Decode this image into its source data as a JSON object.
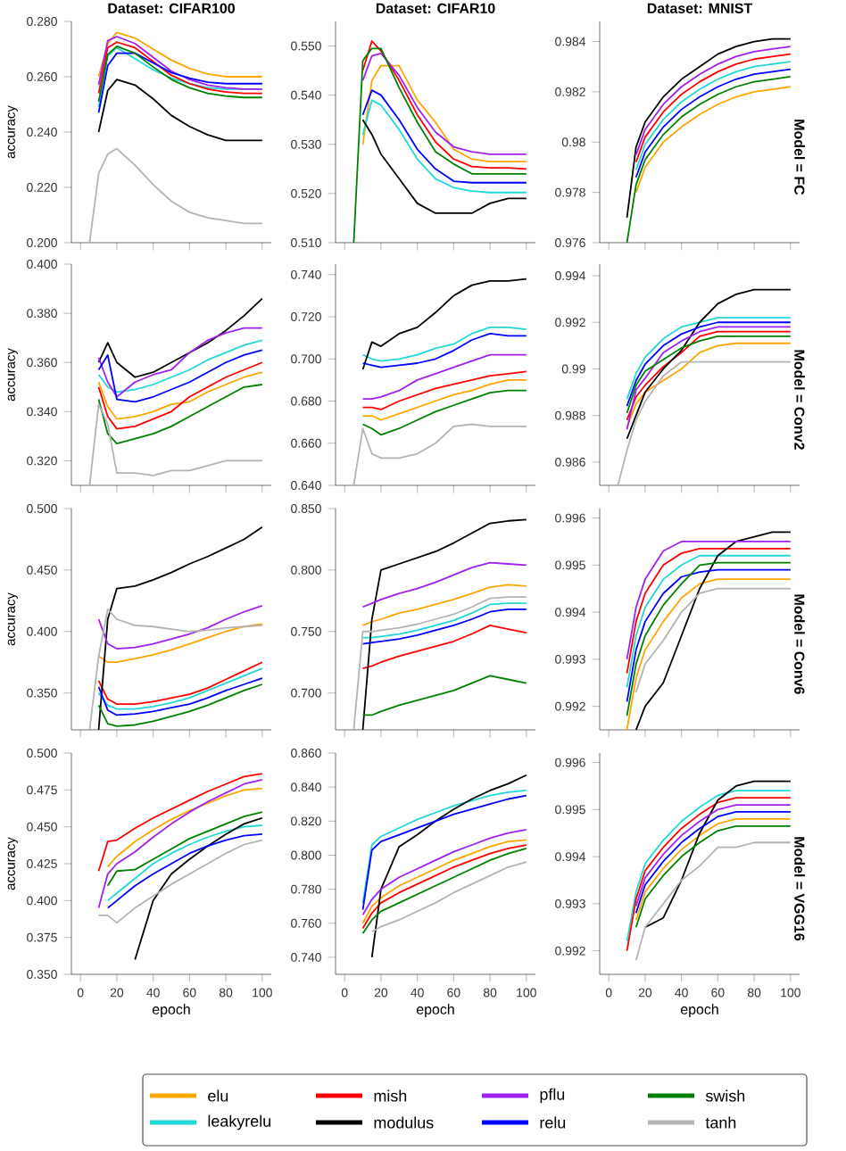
{
  "chart_data": [
    {
      "type": "line",
      "title": "Dataset: CIFAR100",
      "ylabel": "accuracy",
      "legend": "bottom",
      "tick_labels": "y",
      "x": [
        5,
        10,
        15,
        20,
        30,
        40,
        50,
        60,
        70,
        80,
        90,
        100
      ],
      "xlim": [
        -5,
        105
      ],
      "xticks": [
        0,
        20,
        40,
        60,
        80,
        100
      ],
      "ylim": [
        0.2,
        0.28
      ],
      "yticks": [
        {
          "value": 0.2,
          "label": "0.200"
        },
        {
          "value": 0.22,
          "label": "0.220"
        },
        {
          "value": 0.24,
          "label": "0.240"
        },
        {
          "value": 0.26,
          "label": "0.260"
        },
        {
          "value": 0.28,
          "label": "0.280"
        }
      ],
      "series": [
        {
          "name": "elu",
          "color": "#ffa500",
          "values": [
            null,
            0.26,
            0.272,
            0.276,
            0.274,
            0.27,
            0.266,
            0.263,
            0.261,
            0.26,
            0.26,
            0.26
          ]
        },
        {
          "name": "leakyrelu",
          "color": "#20d8d8",
          "values": [
            null,
            0.249,
            0.2675,
            0.2705,
            0.2665,
            0.2625,
            0.2595,
            0.2575,
            0.256,
            0.2555,
            0.2555,
            0.2555
          ]
        },
        {
          "name": "mish",
          "color": "#ff0000",
          "values": [
            null,
            0.254,
            0.2705,
            0.2725,
            0.2705,
            0.2655,
            0.2605,
            0.2575,
            0.2555,
            0.2545,
            0.254,
            0.254
          ]
        },
        {
          "name": "modulus",
          "color": "#000000",
          "values": [
            null,
            0.24,
            0.255,
            0.259,
            0.257,
            0.252,
            0.246,
            0.242,
            0.239,
            0.237,
            0.237,
            0.237
          ]
        },
        {
          "name": "pflu",
          "color": "#a020f0",
          "values": [
            null,
            0.257,
            0.273,
            0.2745,
            0.272,
            0.267,
            0.262,
            0.259,
            0.257,
            0.256,
            0.2555,
            0.2555
          ]
        },
        {
          "name": "relu",
          "color": "#0000ff",
          "values": [
            null,
            0.247,
            0.264,
            0.2685,
            0.2685,
            0.265,
            0.2615,
            0.2595,
            0.258,
            0.2575,
            0.2575,
            0.2575
          ]
        },
        {
          "name": "swish",
          "color": "#008000",
          "values": [
            null,
            0.251,
            0.268,
            0.271,
            0.2685,
            0.2635,
            0.259,
            0.256,
            0.254,
            0.253,
            0.2525,
            0.2525
          ]
        },
        {
          "name": "tanh",
          "color": "#b4b4b4",
          "values": [
            0.2,
            0.225,
            0.232,
            0.234,
            0.228,
            0.221,
            0.215,
            0.211,
            0.209,
            0.208,
            0.207,
            0.207
          ]
        }
      ]
    },
    {
      "type": "line",
      "title": "Dataset: CIFAR10",
      "tick_labels": "y",
      "x": [
        5,
        10,
        15,
        20,
        30,
        40,
        50,
        60,
        70,
        80,
        90,
        100
      ],
      "xlim": [
        -5,
        105
      ],
      "xticks": [
        0,
        20,
        40,
        60,
        80,
        100
      ],
      "ylim": [
        0.51,
        0.555
      ],
      "yticks": [
        {
          "value": 0.51,
          "label": "0.510"
        },
        {
          "value": 0.52,
          "label": "0.520"
        },
        {
          "value": 0.53,
          "label": "0.530"
        },
        {
          "value": 0.54,
          "label": "0.540"
        },
        {
          "value": 0.55,
          "label": "0.550"
        }
      ],
      "series": [
        {
          "color": "#ffa500",
          "values": [
            null,
            0.53,
            0.543,
            0.546,
            0.546,
            0.539,
            0.5345,
            0.529,
            0.527,
            0.5265,
            0.5265,
            0.5265
          ]
        },
        {
          "color": "#20d8d8",
          "values": [
            null,
            0.532,
            0.539,
            0.538,
            0.533,
            0.527,
            0.523,
            0.5212,
            0.5205,
            0.5202,
            0.5202,
            0.5202
          ]
        },
        {
          "color": "#ff0000",
          "values": [
            null,
            0.545,
            0.551,
            0.549,
            0.543,
            0.536,
            0.5305,
            0.527,
            0.5255,
            0.5252,
            0.5252,
            0.525
          ]
        },
        {
          "color": "#000000",
          "values": [
            null,
            0.535,
            0.532,
            0.528,
            0.523,
            0.518,
            0.516,
            0.516,
            0.516,
            0.518,
            0.519,
            0.519
          ]
        },
        {
          "color": "#a020f0",
          "values": [
            null,
            0.543,
            0.548,
            0.5485,
            0.544,
            0.5375,
            0.5325,
            0.5295,
            0.5285,
            0.528,
            0.528,
            0.528
          ]
        },
        {
          "color": "#0000ff",
          "values": [
            null,
            0.536,
            0.541,
            0.54,
            0.535,
            0.529,
            0.525,
            0.5225,
            0.5222,
            0.5222,
            0.5222,
            0.5222
          ]
        },
        {
          "color": "#008000",
          "values": [
            0.51,
            0.547,
            0.5495,
            0.5495,
            0.5415,
            0.5345,
            0.5285,
            0.526,
            0.524,
            0.524,
            0.524,
            0.524
          ]
        }
      ]
    },
    {
      "type": "line",
      "title": "Dataset: MNIST",
      "y2label": "Model = FC",
      "tick_labels": "y",
      "x": [
        10,
        15,
        20,
        30,
        40,
        50,
        60,
        70,
        80,
        90,
        100
      ],
      "xlim": [
        -5,
        105
      ],
      "xticks": [
        0,
        20,
        40,
        60,
        80,
        100
      ],
      "ylim": [
        0.976,
        0.9848
      ],
      "yticks": [
        0.976,
        0.978,
        0.98,
        0.982,
        0.984
      ],
      "series": [
        {
          "color": "#ffa500",
          "values": [
            null,
            0.978,
            0.979,
            0.98,
            0.9806,
            0.9811,
            0.9815,
            0.9818,
            0.982,
            0.9821,
            0.9822
          ]
        },
        {
          "color": "#20d8d8",
          "values": [
            null,
            0.9789,
            0.9799,
            0.9809,
            0.9816,
            0.9821,
            0.9825,
            0.9828,
            0.983,
            0.9831,
            0.9832
          ]
        },
        {
          "color": "#ff0000",
          "values": [
            null,
            0.9792,
            0.9802,
            0.9812,
            0.9819,
            0.9824,
            0.9828,
            0.9831,
            0.9833,
            0.9834,
            0.9835
          ]
        },
        {
          "color": "#000000",
          "values": [
            0.977,
            0.9798,
            0.9808,
            0.9818,
            0.9825,
            0.983,
            0.9835,
            0.9838,
            0.984,
            0.9841,
            0.9841
          ]
        },
        {
          "color": "#a020f0",
          "values": [
            null,
            0.9795,
            0.9805,
            0.9815,
            0.9822,
            0.9827,
            0.9831,
            0.9834,
            0.9836,
            0.9837,
            0.9838
          ]
        },
        {
          "color": "#0000ff",
          "values": [
            null,
            0.9786,
            0.9796,
            0.9806,
            0.9813,
            0.9818,
            0.9822,
            0.9825,
            0.9827,
            0.9828,
            0.9829
          ]
        },
        {
          "color": "#008000",
          "values": [
            0.976,
            0.9783,
            0.9793,
            0.9803,
            0.981,
            0.9815,
            0.9819,
            0.9822,
            0.9824,
            0.9825,
            0.9826
          ]
        }
      ]
    },
    {
      "type": "line",
      "ylabel": "accuracy",
      "tick_labels": "y",
      "x": [
        5,
        10,
        15,
        20,
        30,
        40,
        50,
        60,
        70,
        80,
        90,
        100
      ],
      "xlim": [
        -5,
        105
      ],
      "xticks": [
        0,
        20,
        40,
        60,
        80,
        100
      ],
      "ylim": [
        0.31,
        0.4
      ],
      "yticks": [
        {
          "value": 0.32,
          "label": "0.320"
        },
        {
          "value": 0.34,
          "label": "0.340"
        },
        {
          "value": 0.36,
          "label": "0.360"
        },
        {
          "value": 0.38,
          "label": "0.380"
        },
        {
          "value": 0.4,
          "label": "0.400"
        }
      ],
      "series": [
        {
          "color": "#ffa500",
          "values": [
            null,
            0.352,
            0.342,
            0.337,
            0.338,
            0.34,
            0.343,
            0.344,
            0.348,
            0.351,
            0.354,
            0.356
          ]
        },
        {
          "color": "#20d8d8",
          "values": [
            null,
            0.355,
            0.35,
            0.348,
            0.349,
            0.351,
            0.354,
            0.357,
            0.361,
            0.364,
            0.367,
            0.369
          ]
        },
        {
          "color": "#ff0000",
          "values": [
            null,
            0.35,
            0.338,
            0.333,
            0.334,
            0.337,
            0.34,
            0.346,
            0.35,
            0.354,
            0.357,
            0.36
          ]
        },
        {
          "color": "#000000",
          "values": [
            null,
            0.36,
            0.368,
            0.36,
            0.354,
            0.356,
            0.36,
            0.364,
            0.368,
            0.373,
            0.379,
            0.386
          ]
        },
        {
          "color": "#a020f0",
          "values": [
            null,
            0.362,
            0.352,
            0.346,
            0.352,
            0.355,
            0.357,
            0.364,
            0.369,
            0.372,
            0.374,
            0.374
          ]
        },
        {
          "color": "#0000ff",
          "values": [
            null,
            0.357,
            0.363,
            0.345,
            0.344,
            0.346,
            0.349,
            0.352,
            0.356,
            0.36,
            0.363,
            0.365
          ]
        },
        {
          "color": "#008000",
          "values": [
            null,
            0.345,
            0.331,
            0.327,
            0.329,
            0.331,
            0.334,
            0.338,
            0.342,
            0.346,
            0.35,
            0.351
          ]
        },
        {
          "color": "#b4b4b4",
          "values": [
            0.31,
            0.343,
            0.335,
            0.315,
            0.315,
            0.314,
            0.316,
            0.316,
            0.318,
            0.32,
            0.32,
            0.32
          ]
        }
      ]
    },
    {
      "type": "line",
      "tick_labels": "y",
      "x": [
        5,
        10,
        15,
        20,
        30,
        40,
        50,
        60,
        70,
        80,
        90,
        100
      ],
      "xlim": [
        -5,
        105
      ],
      "xticks": [
        0,
        20,
        40,
        60,
        80,
        100
      ],
      "ylim": [
        0.64,
        0.745
      ],
      "yticks": [
        {
          "value": 0.64,
          "label": "0.640"
        },
        {
          "value": 0.66,
          "label": "0.660"
        },
        {
          "value": 0.68,
          "label": "0.680"
        },
        {
          "value": 0.7,
          "label": "0.700"
        },
        {
          "value": 0.72,
          "label": "0.720"
        },
        {
          "value": 0.74,
          "label": "0.740"
        }
      ],
      "series": [
        {
          "color": "#ffa500",
          "values": [
            null,
            0.673,
            0.673,
            0.671,
            0.674,
            0.677,
            0.68,
            0.683,
            0.685,
            0.688,
            0.69,
            0.69
          ]
        },
        {
          "color": "#20d8d8",
          "values": [
            null,
            0.702,
            0.7,
            0.699,
            0.7,
            0.702,
            0.705,
            0.707,
            0.712,
            0.715,
            0.715,
            0.714
          ]
        },
        {
          "color": "#ff0000",
          "values": [
            null,
            0.677,
            0.677,
            0.676,
            0.68,
            0.683,
            0.686,
            0.688,
            0.69,
            0.692,
            0.693,
            0.694
          ]
        },
        {
          "color": "#000000",
          "values": [
            null,
            0.695,
            0.708,
            0.706,
            0.712,
            0.715,
            0.722,
            0.73,
            0.735,
            0.737,
            0.737,
            0.738
          ]
        },
        {
          "color": "#a020f0",
          "values": [
            null,
            0.681,
            0.681,
            0.682,
            0.685,
            0.69,
            0.693,
            0.696,
            0.699,
            0.702,
            0.702,
            0.702
          ]
        },
        {
          "color": "#0000ff",
          "values": [
            null,
            0.698,
            0.697,
            0.696,
            0.697,
            0.698,
            0.7,
            0.704,
            0.709,
            0.712,
            0.711,
            0.711
          ]
        },
        {
          "color": "#008000",
          "values": [
            null,
            0.669,
            0.667,
            0.664,
            0.667,
            0.671,
            0.675,
            0.678,
            0.681,
            0.684,
            0.685,
            0.685
          ]
        },
        {
          "color": "#b4b4b4",
          "values": [
            0.64,
            0.667,
            0.655,
            0.653,
            0.653,
            0.655,
            0.66,
            0.668,
            0.669,
            0.668,
            0.668,
            0.668
          ]
        }
      ]
    },
    {
      "type": "line",
      "y2label": "Model = Conv2",
      "tick_labels": "y",
      "x": [
        5,
        10,
        15,
        20,
        30,
        40,
        50,
        60,
        70,
        80,
        90,
        100
      ],
      "xlim": [
        -5,
        105
      ],
      "xticks": [
        0,
        20,
        40,
        60,
        80,
        100
      ],
      "ylim": [
        0.985,
        0.9945
      ],
      "yticks": [
        0.986,
        0.988,
        0.99,
        0.992,
        0.994
      ],
      "series": [
        {
          "color": "#ffa500",
          "values": [
            null,
            0.9875,
            0.9885,
            0.989,
            0.9895,
            0.99,
            0.9907,
            0.991,
            0.9911,
            0.9911,
            0.9911,
            0.9911
          ]
        },
        {
          "color": "#20d8d8",
          "values": [
            null,
            0.9887,
            0.9898,
            0.9905,
            0.9913,
            0.9918,
            0.992,
            0.9922,
            0.9922,
            0.9922,
            0.9922,
            0.9922
          ]
        },
        {
          "color": "#ff0000",
          "values": [
            null,
            0.9878,
            0.9888,
            0.9893,
            0.9901,
            0.9907,
            0.9914,
            0.9916,
            0.9916,
            0.9916,
            0.9916,
            0.9916
          ]
        },
        {
          "color": "#000000",
          "values": [
            null,
            0.987,
            0.988,
            0.989,
            0.99,
            0.9908,
            0.992,
            0.9928,
            0.9932,
            0.9934,
            0.9934,
            0.9934
          ]
        },
        {
          "color": "#a020f0",
          "values": [
            null,
            0.9874,
            0.9891,
            0.9896,
            0.9907,
            0.9912,
            0.9916,
            0.9918,
            0.9918,
            0.9918,
            0.9918,
            0.9918
          ]
        },
        {
          "color": "#0000ff",
          "values": [
            null,
            0.9884,
            0.9895,
            0.9902,
            0.991,
            0.9915,
            0.9918,
            0.992,
            0.992,
            0.992,
            0.992,
            0.992
          ]
        },
        {
          "color": "#008000",
          "values": [
            null,
            0.9881,
            0.9893,
            0.9899,
            0.9904,
            0.9909,
            0.9912,
            0.9914,
            0.9914,
            0.9914,
            0.9914,
            0.9914
          ]
        },
        {
          "color": "#b4b4b4",
          "values": [
            0.985,
            0.9865,
            0.9878,
            0.9886,
            0.9897,
            0.9903,
            0.9903,
            0.9903,
            0.9903,
            0.9903,
            0.9903,
            0.9903
          ]
        }
      ]
    },
    {
      "type": "line",
      "ylabel": "accuracy",
      "tick_labels": "y",
      "x": [
        5,
        10,
        15,
        20,
        30,
        40,
        50,
        60,
        70,
        80,
        90,
        100
      ],
      "xlim": [
        -5,
        105
      ],
      "xticks": [
        0,
        20,
        40,
        60,
        80,
        100
      ],
      "ylim": [
        0.32,
        0.5
      ],
      "yticks": [
        {
          "value": 0.35,
          "label": "0.350"
        },
        {
          "value": 0.4,
          "label": "0.400"
        },
        {
          "value": 0.45,
          "label": "0.450"
        },
        {
          "value": 0.5,
          "label": "0.500"
        }
      ],
      "series": [
        {
          "color": "#ffa500",
          "values": [
            null,
            0.38,
            0.375,
            0.375,
            0.378,
            0.381,
            0.385,
            0.39,
            0.395,
            0.4,
            0.404,
            0.406
          ]
        },
        {
          "color": "#20d8d8",
          "values": [
            null,
            0.35,
            0.34,
            0.337,
            0.337,
            0.339,
            0.342,
            0.346,
            0.352,
            0.358,
            0.364,
            0.37
          ]
        },
        {
          "color": "#ff0000",
          "values": [
            null,
            0.36,
            0.345,
            0.341,
            0.341,
            0.343,
            0.346,
            0.349,
            0.354,
            0.361,
            0.368,
            0.375
          ]
        },
        {
          "color": "#000000",
          "values": [
            null,
            0.32,
            0.41,
            0.435,
            0.437,
            0.442,
            0.448,
            0.455,
            0.461,
            0.468,
            0.475,
            0.485
          ]
        },
        {
          "color": "#a020f0",
          "values": [
            null,
            0.41,
            0.39,
            0.386,
            0.387,
            0.39,
            0.394,
            0.398,
            0.403,
            0.41,
            0.416,
            0.421
          ]
        },
        {
          "color": "#0000ff",
          "values": [
            null,
            0.355,
            0.336,
            0.332,
            0.333,
            0.335,
            0.338,
            0.341,
            0.346,
            0.352,
            0.357,
            0.362
          ]
        },
        {
          "color": "#008000",
          "values": [
            null,
            0.34,
            0.325,
            0.323,
            0.324,
            0.327,
            0.331,
            0.335,
            0.34,
            0.346,
            0.352,
            0.357
          ]
        },
        {
          "color": "#b4b4b4",
          "values": [
            0.32,
            0.38,
            0.418,
            0.41,
            0.405,
            0.404,
            0.402,
            0.4,
            0.401,
            0.403,
            0.404,
            0.405
          ]
        }
      ]
    },
    {
      "type": "line",
      "tick_labels": "y",
      "x": [
        5,
        10,
        15,
        20,
        30,
        40,
        50,
        60,
        70,
        80,
        90,
        100
      ],
      "xlim": [
        -5,
        105
      ],
      "xticks": [
        0,
        20,
        40,
        60,
        80,
        100
      ],
      "ylim": [
        0.67,
        0.85
      ],
      "yticks": [
        {
          "value": 0.7,
          "label": "0.700"
        },
        {
          "value": 0.75,
          "label": "0.750"
        },
        {
          "value": 0.8,
          "label": "0.800"
        },
        {
          "value": 0.85,
          "label": "0.850"
        }
      ],
      "series": [
        {
          "color": "#ffa500",
          "values": [
            null,
            0.755,
            0.758,
            0.76,
            0.765,
            0.768,
            0.772,
            0.776,
            0.781,
            0.786,
            0.788,
            0.787
          ]
        },
        {
          "color": "#20d8d8",
          "values": [
            null,
            0.745,
            0.745,
            0.746,
            0.748,
            0.751,
            0.755,
            0.759,
            0.765,
            0.772,
            0.773,
            0.773
          ]
        },
        {
          "color": "#ff0000",
          "values": [
            null,
            0.72,
            0.722,
            0.725,
            0.73,
            0.734,
            0.738,
            0.742,
            0.748,
            0.755,
            0.752,
            0.749
          ]
        },
        {
          "color": "#000000",
          "values": [
            null,
            0.67,
            0.76,
            0.8,
            0.805,
            0.81,
            0.815,
            0.822,
            0.83,
            0.838,
            0.84,
            0.841
          ]
        },
        {
          "color": "#a020f0",
          "values": [
            null,
            0.77,
            0.773,
            0.776,
            0.781,
            0.785,
            0.79,
            0.796,
            0.802,
            0.806,
            0.805,
            0.804
          ]
        },
        {
          "color": "#0000ff",
          "values": [
            null,
            0.74,
            0.741,
            0.742,
            0.744,
            0.747,
            0.751,
            0.755,
            0.76,
            0.766,
            0.768,
            0.768
          ]
        },
        {
          "color": "#008000",
          "values": [
            null,
            0.682,
            0.682,
            0.685,
            0.69,
            0.694,
            0.698,
            0.702,
            0.708,
            0.714,
            0.711,
            0.708
          ]
        },
        {
          "color": "#b4b4b4",
          "values": [
            0.67,
            0.75,
            0.75,
            0.751,
            0.753,
            0.756,
            0.76,
            0.764,
            0.77,
            0.777,
            0.778,
            0.778
          ]
        }
      ]
    },
    {
      "type": "line",
      "y2label": "Model = Conv6",
      "tick_labels": "y",
      "x": [
        10,
        15,
        20,
        30,
        40,
        50,
        60,
        70,
        80,
        90,
        100
      ],
      "xlim": [
        -5,
        105
      ],
      "xticks": [
        0,
        20,
        40,
        60,
        80,
        100
      ],
      "ylim": [
        0.9915,
        0.9962
      ],
      "yticks": [
        0.992,
        0.993,
        0.994,
        0.995,
        0.996
      ],
      "series": [
        {
          "color": "#ffa500",
          "values": [
            0.9915,
            0.9926,
            0.9932,
            0.9938,
            0.9943,
            0.9946,
            0.9947,
            0.9947,
            0.9947,
            0.9947,
            0.9947
          ]
        },
        {
          "color": "#20d8d8",
          "values": [
            0.9924,
            0.9935,
            0.9941,
            0.9947,
            0.995,
            0.9952,
            0.9952,
            0.9952,
            0.9952,
            0.9952,
            0.9952
          ]
        },
        {
          "color": "#ff0000",
          "values": [
            0.9927,
            0.9938,
            0.9944,
            0.995,
            0.99525,
            0.99535,
            0.99535,
            0.99535,
            0.99535,
            0.99535,
            0.99535
          ]
        },
        {
          "color": "#000000",
          "values": [
            null,
            0.9915,
            0.992,
            0.9925,
            0.9935,
            0.9945,
            0.9952,
            0.9955,
            0.9956,
            0.9957,
            0.9957
          ]
        },
        {
          "color": "#a020f0",
          "values": [
            0.993,
            0.9941,
            0.9947,
            0.9953,
            0.9955,
            0.9955,
            0.9955,
            0.9955,
            0.9955,
            0.9955,
            0.9955
          ]
        },
        {
          "color": "#0000ff",
          "values": [
            0.9921,
            0.9932,
            0.9938,
            0.9944,
            0.99475,
            0.99485,
            0.9949,
            0.9949,
            0.9949,
            0.9949,
            0.9949
          ]
        },
        {
          "color": "#008000",
          "values": [
            0.9918,
            0.9929,
            0.9935,
            0.99415,
            0.9946,
            0.995,
            0.99505,
            0.99505,
            0.99505,
            0.99505,
            0.99505
          ]
        },
        {
          "color": "#b4b4b4",
          "values": [
            null,
            0.9923,
            0.9929,
            0.9934,
            0.994,
            0.9944,
            0.9945,
            0.9945,
            0.9945,
            0.9945,
            0.9945
          ]
        }
      ]
    },
    {
      "type": "line",
      "ylabel": "accuracy",
      "xlabel": "epoch",
      "x": [
        10,
        15,
        20,
        30,
        40,
        50,
        60,
        70,
        80,
        90,
        100
      ],
      "xlim": [
        -5,
        105
      ],
      "xticks": [
        0,
        20,
        40,
        60,
        80,
        100
      ],
      "ylim": [
        0.35,
        0.5
      ],
      "yticks": [
        {
          "value": 0.35,
          "label": "0.350"
        },
        {
          "value": 0.375,
          "label": "0.375"
        },
        {
          "value": 0.4,
          "label": "0.400"
        },
        {
          "value": 0.425,
          "label": "0.425"
        },
        {
          "value": 0.45,
          "label": "0.450"
        },
        {
          "value": 0.475,
          "label": "0.475"
        },
        {
          "value": 0.5,
          "label": "0.500"
        }
      ],
      "series": [
        {
          "color": "#ffa500",
          "values": [
            null,
            0.423,
            0.43,
            0.44,
            0.448,
            0.455,
            0.461,
            0.466,
            0.471,
            0.475,
            0.476
          ]
        },
        {
          "color": "#20d8d8",
          "values": [
            null,
            0.4,
            0.405,
            0.415,
            0.425,
            0.432,
            0.438,
            0.443,
            0.447,
            0.45,
            0.451
          ]
        },
        {
          "color": "#ff0000",
          "values": [
            0.42,
            0.44,
            0.441,
            0.449,
            0.456,
            0.462,
            0.468,
            0.474,
            0.479,
            0.484,
            0.486
          ]
        },
        {
          "color": "#000000",
          "values": [
            null,
            null,
            null,
            0.36,
            0.4,
            0.418,
            0.428,
            0.437,
            0.445,
            0.452,
            0.456
          ]
        },
        {
          "color": "#a020f0",
          "values": [
            0.395,
            0.418,
            0.425,
            0.433,
            0.443,
            0.452,
            0.46,
            0.467,
            0.473,
            0.479,
            0.482
          ]
        },
        {
          "color": "#0000ff",
          "values": [
            null,
            0.395,
            0.4,
            0.41,
            0.418,
            0.425,
            0.432,
            0.437,
            0.441,
            0.444,
            0.445
          ]
        },
        {
          "color": "#008000",
          "values": [
            null,
            0.41,
            0.42,
            0.421,
            0.428,
            0.435,
            0.442,
            0.447,
            0.452,
            0.457,
            0.46
          ]
        },
        {
          "color": "#b4b4b4",
          "values": [
            0.39,
            0.39,
            0.385,
            0.395,
            0.403,
            0.411,
            0.418,
            0.425,
            0.432,
            0.438,
            0.441
          ]
        }
      ]
    },
    {
      "type": "line",
      "xlabel": "epoch",
      "x": [
        10,
        15,
        20,
        30,
        40,
        50,
        60,
        70,
        80,
        90,
        100
      ],
      "xlim": [
        -5,
        105
      ],
      "xticks": [
        0,
        20,
        40,
        60,
        80,
        100
      ],
      "ylim": [
        0.73,
        0.86
      ],
      "yticks": [
        {
          "value": 0.74,
          "label": "0.740"
        },
        {
          "value": 0.76,
          "label": "0.760"
        },
        {
          "value": 0.78,
          "label": "0.780"
        },
        {
          "value": 0.8,
          "label": "0.800"
        },
        {
          "value": 0.82,
          "label": "0.820"
        },
        {
          "value": 0.84,
          "label": "0.840"
        },
        {
          "value": 0.86,
          "label": "0.860"
        }
      ],
      "series": [
        {
          "color": "#ffa500",
          "values": [
            0.76,
            0.77,
            0.775,
            0.782,
            0.787,
            0.792,
            0.797,
            0.801,
            0.805,
            0.808,
            0.809
          ]
        },
        {
          "color": "#20d8d8",
          "values": [
            0.772,
            0.806,
            0.811,
            0.816,
            0.821,
            0.825,
            0.829,
            0.832,
            0.835,
            0.837,
            0.838
          ]
        },
        {
          "color": "#ff0000",
          "values": [
            0.757,
            0.766,
            0.772,
            0.778,
            0.783,
            0.788,
            0.793,
            0.797,
            0.801,
            0.804,
            0.806
          ]
        },
        {
          "color": "#000000",
          "values": [
            null,
            0.74,
            0.78,
            0.805,
            0.812,
            0.82,
            0.827,
            0.833,
            0.838,
            0.842,
            0.847
          ]
        },
        {
          "color": "#a020f0",
          "values": [
            0.765,
            0.774,
            0.78,
            0.787,
            0.792,
            0.797,
            0.802,
            0.806,
            0.81,
            0.813,
            0.815
          ]
        },
        {
          "color": "#0000ff",
          "values": [
            0.768,
            0.803,
            0.808,
            0.812,
            0.816,
            0.82,
            0.824,
            0.827,
            0.83,
            0.833,
            0.835
          ]
        },
        {
          "color": "#008000",
          "values": [
            0.754,
            0.762,
            0.767,
            0.772,
            0.777,
            0.782,
            0.787,
            0.792,
            0.797,
            0.801,
            0.804
          ]
        },
        {
          "color": "#b4b4b4",
          "values": [
            null,
            0.755,
            0.758,
            0.762,
            0.767,
            0.772,
            0.778,
            0.783,
            0.788,
            0.793,
            0.796
          ]
        }
      ]
    },
    {
      "type": "line",
      "xlabel": "epoch",
      "y2label": "Model = VGG16",
      "x": [
        10,
        15,
        20,
        30,
        40,
        50,
        60,
        70,
        80,
        90,
        100
      ],
      "xlim": [
        -5,
        105
      ],
      "xticks": [
        0,
        20,
        40,
        60,
        80,
        100
      ],
      "ylim": [
        0.9915,
        0.9962
      ],
      "yticks": [
        0.992,
        0.993,
        0.994,
        0.995,
        0.996
      ],
      "series": [
        {
          "color": "#ffa500",
          "values": [
            null,
            0.99265,
            0.99325,
            0.99375,
            0.99415,
            0.99445,
            0.9947,
            0.9948,
            0.9948,
            0.9948,
            0.9948
          ]
        },
        {
          "color": "#20d8d8",
          "values": [
            0.9922,
            0.99325,
            0.99385,
            0.99435,
            0.99475,
            0.99505,
            0.9953,
            0.9954,
            0.9954,
            0.9954,
            0.9954
          ]
        },
        {
          "color": "#ff0000",
          "values": [
            0.992,
            0.9931,
            0.9937,
            0.9942,
            0.9946,
            0.9949,
            0.99515,
            0.99525,
            0.99525,
            0.99525,
            0.99525
          ]
        },
        {
          "color": "#000000",
          "values": [
            null,
            null,
            0.9925,
            0.9927,
            0.9935,
            0.9945,
            0.9952,
            0.9955,
            0.9956,
            0.9956,
            0.9956
          ]
        },
        {
          "color": "#a020f0",
          "values": [
            null,
            0.99295,
            0.99355,
            0.99405,
            0.99445,
            0.99475,
            0.995,
            0.9951,
            0.9951,
            0.9951,
            0.9951
          ]
        },
        {
          "color": "#0000ff",
          "values": [
            null,
            0.9928,
            0.9934,
            0.9939,
            0.9943,
            0.9946,
            0.99485,
            0.99495,
            0.99495,
            0.99495,
            0.99495
          ]
        },
        {
          "color": "#008000",
          "values": [
            null,
            0.9925,
            0.9931,
            0.9936,
            0.994,
            0.9943,
            0.99455,
            0.99465,
            0.99465,
            0.99465,
            0.99465
          ]
        },
        {
          "color": "#b4b4b4",
          "values": [
            null,
            0.9918,
            0.9925,
            0.993,
            0.9935,
            0.9938,
            0.9942,
            0.9942,
            0.9943,
            0.9943,
            0.9943
          ]
        }
      ]
    }
  ]
}
